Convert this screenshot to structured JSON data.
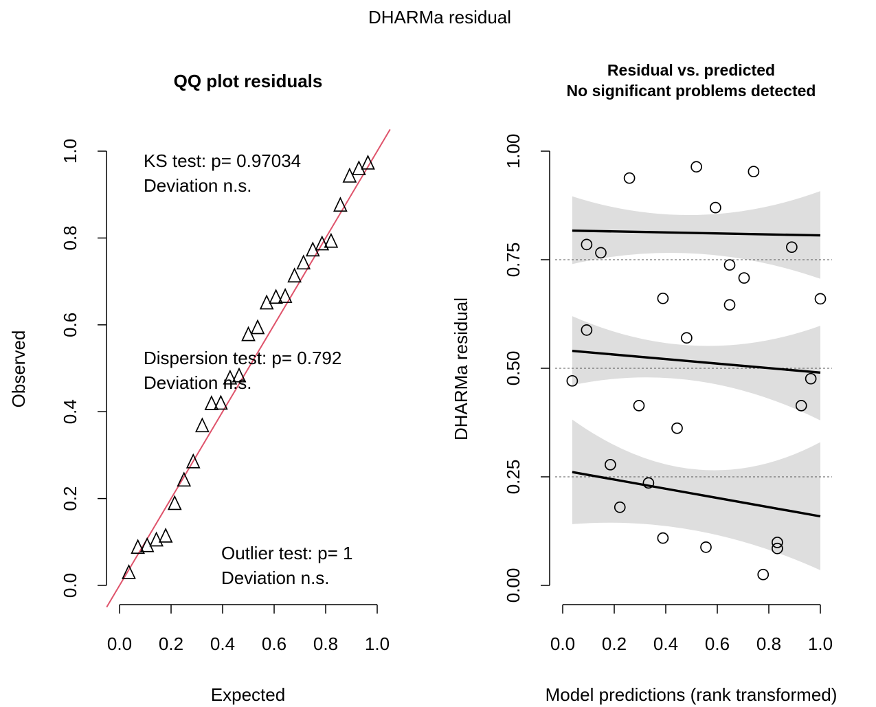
{
  "page": {
    "title": "DHARMa residual"
  },
  "chart_data": [
    {
      "type": "scatter",
      "title": "QQ plot residuals",
      "xlabel": "Expected",
      "ylabel": "Observed",
      "xlim": [
        0,
        1
      ],
      "ylim": [
        0,
        1
      ],
      "xticks": [
        "0.0",
        "0.2",
        "0.4",
        "0.6",
        "0.8",
        "1.0"
      ],
      "yticks": [
        "0.0",
        "0.2",
        "0.4",
        "0.6",
        "0.8",
        "1.0"
      ],
      "marker": "open-triangle",
      "reference_line": {
        "slope": 1,
        "intercept": 0,
        "color": "#DF536B"
      },
      "points": [
        [
          0.036,
          0.027
        ],
        [
          0.071,
          0.085
        ],
        [
          0.107,
          0.089
        ],
        [
          0.143,
          0.102
        ],
        [
          0.179,
          0.111
        ],
        [
          0.214,
          0.186
        ],
        [
          0.25,
          0.24
        ],
        [
          0.286,
          0.282
        ],
        [
          0.321,
          0.365
        ],
        [
          0.357,
          0.416
        ],
        [
          0.393,
          0.417
        ],
        [
          0.429,
          0.475
        ],
        [
          0.464,
          0.48
        ],
        [
          0.5,
          0.575
        ],
        [
          0.536,
          0.591
        ],
        [
          0.571,
          0.648
        ],
        [
          0.607,
          0.661
        ],
        [
          0.643,
          0.663
        ],
        [
          0.679,
          0.71
        ],
        [
          0.714,
          0.74
        ],
        [
          0.75,
          0.77
        ],
        [
          0.786,
          0.784
        ],
        [
          0.821,
          0.79
        ],
        [
          0.857,
          0.873
        ],
        [
          0.893,
          0.94
        ],
        [
          0.929,
          0.957
        ],
        [
          0.964,
          0.97
        ]
      ],
      "annotations": [
        {
          "line1": "KS test: p= 0.97034",
          "line2": "Deviation  n.s."
        },
        {
          "line1": "Dispersion test: p= 0.792",
          "line2": "Deviation  n.s."
        },
        {
          "line1": "Outlier test: p= 1",
          "line2": "Deviation  n.s."
        }
      ]
    },
    {
      "type": "scatter",
      "title_lines": [
        "Residual vs. predicted",
        "No significant problems detected"
      ],
      "xlabel": "Model predictions (rank transformed)",
      "ylabel": "DHARMa residual",
      "xlim": [
        0,
        1
      ],
      "ylim": [
        0,
        1
      ],
      "xticks": [
        "0.0",
        "0.2",
        "0.4",
        "0.6",
        "0.8",
        "1.0"
      ],
      "yticks": [
        "0.00",
        "0.25",
        "0.50",
        "0.75",
        "1.00"
      ],
      "marker": "open-circle",
      "reference_levels": [
        0.25,
        0.5,
        0.75
      ],
      "quantile_fits": [
        {
          "quantile": 0.75,
          "from": [
            0.037,
            0.817
          ],
          "to": [
            1.0,
            0.806
          ],
          "band_upper": [
            0.896,
            0.853,
            0.908
          ],
          "band_lower": [
            0.74,
            0.764,
            0.706
          ]
        },
        {
          "quantile": 0.5,
          "from": [
            0.037,
            0.54
          ],
          "to": [
            1.0,
            0.49
          ],
          "band_upper": [
            0.62,
            0.552,
            0.598
          ],
          "band_lower": [
            0.461,
            0.471,
            0.38
          ]
        },
        {
          "quantile": 0.25,
          "from": [
            0.037,
            0.261
          ],
          "to": [
            1.0,
            0.159
          ],
          "band_upper": [
            0.382,
            0.267,
            0.33
          ],
          "band_lower": [
            0.141,
            0.126,
            0.035
          ]
        }
      ],
      "points": [
        [
          0.037,
          0.471
        ],
        [
          0.093,
          0.785
        ],
        [
          0.093,
          0.588
        ],
        [
          0.148,
          0.766
        ],
        [
          0.185,
          0.278
        ],
        [
          0.222,
          0.18
        ],
        [
          0.259,
          0.938
        ],
        [
          0.296,
          0.414
        ],
        [
          0.333,
          0.236
        ],
        [
          0.389,
          0.661
        ],
        [
          0.389,
          0.109
        ],
        [
          0.444,
          0.362
        ],
        [
          0.481,
          0.57
        ],
        [
          0.519,
          0.964
        ],
        [
          0.556,
          0.088
        ],
        [
          0.593,
          0.87
        ],
        [
          0.648,
          0.738
        ],
        [
          0.648,
          0.646
        ],
        [
          0.704,
          0.708
        ],
        [
          0.741,
          0.953
        ],
        [
          0.778,
          0.025
        ],
        [
          0.833,
          0.099
        ],
        [
          0.833,
          0.085
        ],
        [
          0.889,
          0.779
        ],
        [
          0.926,
          0.414
        ],
        [
          0.963,
          0.476
        ],
        [
          1.0,
          0.66
        ]
      ]
    }
  ]
}
